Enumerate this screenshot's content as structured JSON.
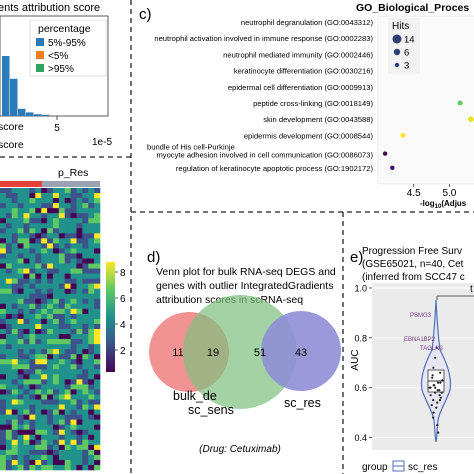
{
  "panel_a": {
    "title_fragment": "ents attribution score",
    "legend_title": "percentage",
    "legend": [
      {
        "label": "5%-95%",
        "color": "#2b7bba"
      },
      {
        "label": "<5%",
        "color": "#f47c20"
      },
      {
        "label": ">95%",
        "color": "#2ca25f"
      }
    ],
    "x_tick": "5",
    "x_multiplier": "1e-5",
    "x_label_fragment": "score",
    "x_label_left": "score"
  },
  "panel_heatmap": {
    "column_group_label": "p_Res",
    "colorbar_ticks": [
      "8",
      "6",
      "4",
      "2"
    ],
    "colorbar_colors": [
      "#fde725",
      "#5ec962",
      "#21918c",
      "#3b528b",
      "#440154"
    ]
  },
  "panel_c": {
    "letter": "c)",
    "title": "GO_Biological_Proces",
    "legend_title": "Hits",
    "legend_items": [
      "14",
      "6",
      "3"
    ],
    "x_label": "-log10(Adjus",
    "x_ticks": [
      "4.5",
      "5.0"
    ]
  },
  "panel_d": {
    "letter": "d)",
    "description": "Venn plot for bulk RNA-seq DEGS and genes with outlier IntegratedGradients attribution scores in scRNA-seq",
    "drug_note": "(Drug: Cetuximab)"
  },
  "panel_e": {
    "letter": "e)",
    "title_line1": "Progression Free Surv",
    "title_line2": "(GSE65021, n=40, Cet",
    "title_line3": "(inferred from SCC47 c",
    "y_label": "AUC",
    "y_ticks": [
      "1.0",
      "0.8",
      "0.6",
      "0.4"
    ],
    "gene_labels": [
      "PSMG3",
      "EBNA1BP2",
      "TAGLN2"
    ],
    "legend_label": "group",
    "legend_item": "sc_res",
    "significance": "t"
  },
  "chart_data": [
    {
      "type": "bar",
      "panel": "a",
      "series": [
        {
          "name": "5%-95%",
          "values": [
            100,
            62,
            12,
            6,
            3,
            2
          ]
        },
        {
          "name": "<5%",
          "values": []
        },
        {
          "name": ">95%",
          "values": []
        }
      ]
    },
    {
      "type": "scatter",
      "panel": "c",
      "title": "GO_Biological_Proces",
      "xlabel": "-log10(Adjus",
      "xlim": [
        4.0,
        5.4
      ],
      "categories": [
        "neutrophil degranulation (GO:0043312)",
        "neutrophil activation involved in immune response (GO:0002283)",
        "neutrophil mediated immunity (GO:0002446)",
        "keratinocyte differentiation (GO:0030216)",
        "epidermal cell differentiation (GO:0009913)",
        "peptide cross-linking (GO:0018149)",
        "skin development (GO:0043588)",
        "epidermis development (GO:0008544)",
        "bundle of His cell-Purkinje myocyte adhesion involved in cell communication (GO:0086073)",
        "regulation of keratinocyte apoptotic process (GO:1902172)"
      ],
      "values": [
        5.6,
        5.6,
        5.6,
        5.5,
        5.45,
        5.15,
        5.3,
        4.35,
        4.1,
        4.2
      ],
      "hits": [
        6,
        6,
        6,
        6,
        5,
        3,
        4,
        3,
        2,
        2
      ],
      "colors": [
        "#b8de29",
        "#b8de29",
        "#b8de29",
        "#73d055",
        "#73d055",
        "#5ec962",
        "#e6e419",
        "#fde725",
        "#440154",
        "#3b0f70"
      ]
    },
    {
      "type": "venn",
      "panel": "d",
      "sets": [
        {
          "name": "bulk_de",
          "only": 11,
          "color": "#f08080"
        },
        {
          "name": "sc_sens",
          "only": 51,
          "color": "#7fbf7f"
        },
        {
          "name": "sc_res",
          "only": 43,
          "color": "#8f8fd6"
        }
      ],
      "overlaps": [
        {
          "sets": [
            "bulk_de",
            "sc_sens"
          ],
          "value": 19
        }
      ]
    },
    {
      "type": "scatter",
      "panel": "e",
      "ylabel": "AUC",
      "ylim": [
        0.35,
        1.02
      ],
      "values": [
        0.62,
        0.58,
        0.55,
        0.6,
        0.64,
        0.57,
        0.53,
        0.5,
        0.66,
        0.61,
        0.59,
        0.56,
        0.63,
        0.52,
        0.48,
        0.6,
        0.58,
        0.54,
        0.65,
        0.62,
        0.57,
        0.55,
        0.6,
        0.68,
        0.72,
        0.76,
        0.45,
        0.42,
        0.59,
        0.61
      ]
    }
  ]
}
